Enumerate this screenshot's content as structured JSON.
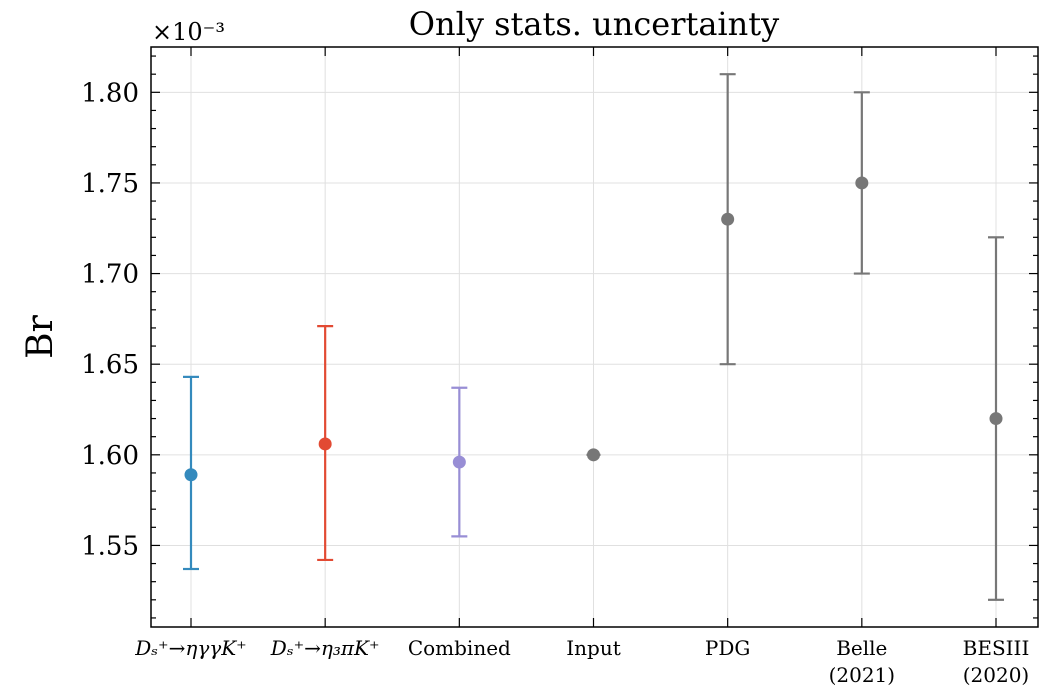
{
  "chart_data": {
    "type": "errorbar",
    "title": "Only stats. uncertainty",
    "ylabel": "Br",
    "y_offset_label": "×10⁻³",
    "y_scale_factor": 0.001,
    "ylim": [
      1.505,
      1.825
    ],
    "yticks": [
      1.55,
      1.6,
      1.65,
      1.7,
      1.75,
      1.8
    ],
    "ytick_labels": [
      "1.55",
      "1.60",
      "1.65",
      "1.70",
      "1.75",
      "1.80"
    ],
    "grid": true,
    "categories": [
      "D_s^+ → η_γγ K^+",
      "D_s^+ → η_3π K^+",
      "Combined",
      "Input",
      "PDG",
      "Belle (2021)",
      "BESIII (2020)"
    ],
    "points": [
      {
        "label_lines": [
          "Dₛ⁺→ηγγK⁺"
        ],
        "value": 1.589,
        "lower": 1.537,
        "upper": 1.643,
        "color": "#348abd"
      },
      {
        "label_lines": [
          "Dₛ⁺→η₃πK⁺"
        ],
        "value": 1.606,
        "lower": 1.542,
        "upper": 1.671,
        "color": "#e24a33"
      },
      {
        "label_lines": [
          "Combined"
        ],
        "value": 1.596,
        "lower": 1.555,
        "upper": 1.637,
        "color": "#988ed5"
      },
      {
        "label_lines": [
          "Input"
        ],
        "value": 1.6,
        "lower": 1.6,
        "upper": 1.6,
        "color": "#777777"
      },
      {
        "label_lines": [
          "PDG"
        ],
        "value": 1.73,
        "lower": 1.65,
        "upper": 1.81,
        "color": "#777777"
      },
      {
        "label_lines": [
          "Belle",
          "(2021)"
        ],
        "value": 1.75,
        "lower": 1.7,
        "upper": 1.8,
        "color": "#777777"
      },
      {
        "label_lines": [
          "BESIII",
          "(2020)"
        ],
        "value": 1.62,
        "lower": 1.52,
        "upper": 1.72,
        "color": "#777777"
      }
    ]
  }
}
